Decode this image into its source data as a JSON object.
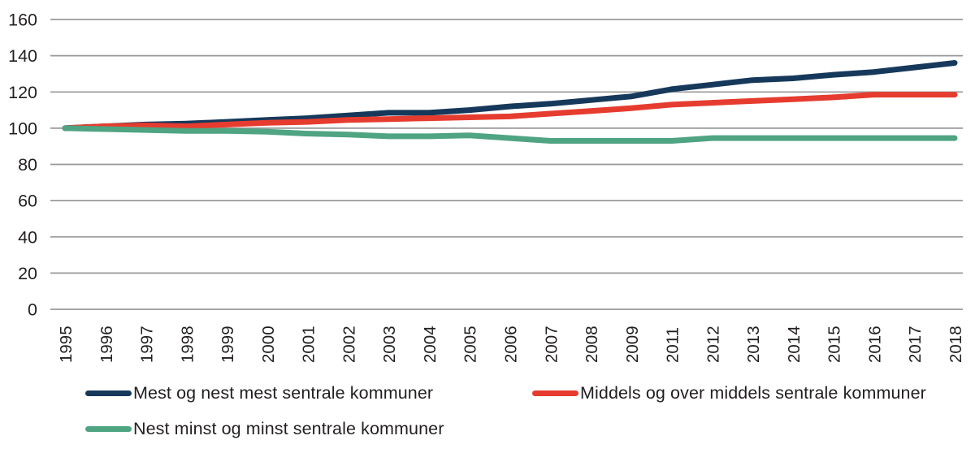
{
  "chart_data": {
    "type": "line",
    "title": "",
    "xlabel": "",
    "ylabel": "",
    "ylim": [
      0,
      160
    ],
    "yticks": [
      160,
      140,
      120,
      100,
      80,
      60,
      40,
      20,
      0
    ],
    "grid": "horizontal",
    "legend_position": "bottom",
    "categories": [
      "1995",
      "1996",
      "1997",
      "1998",
      "1999",
      "2000",
      "2001",
      "2002",
      "2003",
      "2004",
      "2005",
      "2006",
      "2007",
      "2008",
      "2009",
      "2011",
      "2012",
      "2013",
      "2014",
      "2015",
      "2016",
      "2017",
      "2018"
    ],
    "series": [
      {
        "id": "mest-og-nest-mest-sentrale-kommuner",
        "name": "Mest og nest mest sentrale kommuner",
        "color": "#16395b",
        "values": [
          100,
          101,
          102,
          102.5,
          103.5,
          104.5,
          105.5,
          107,
          108.5,
          108.5,
          110,
          112,
          113.5,
          115.5,
          117.5,
          121.5,
          124,
          126.5,
          127.5,
          129.5,
          131,
          133.5,
          136
        ]
      },
      {
        "id": "middels-og-over-middels-sentrale-kommuner",
        "name": "Middels og over middels sentrale kommuner",
        "color": "#e63c2f",
        "values": [
          100,
          101,
          101.5,
          101,
          102,
          103,
          103.5,
          104.5,
          105,
          105.5,
          106,
          106.5,
          108,
          109.5,
          111,
          113,
          114,
          115,
          116,
          117,
          118.5,
          118.5,
          118.5
        ]
      },
      {
        "id": "nest-minst-og-minst-sentrale-kommuner",
        "name": "Nest minst og minst sentrale kommuner",
        "color": "#4fa482",
        "values": [
          100,
          99.5,
          99,
          98.5,
          98.5,
          98,
          97,
          96.5,
          95.5,
          95.5,
          96,
          94.5,
          93,
          93,
          93,
          93,
          94.5,
          94.5,
          94.5,
          94.5,
          94.5,
          94.5,
          94.5
        ]
      }
    ]
  },
  "style": {
    "gridline_color": "#999999",
    "tick_label_color": "#231f20",
    "line_width": 7
  }
}
